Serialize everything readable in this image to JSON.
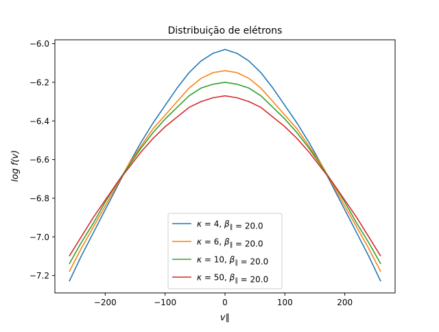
{
  "chart_data": {
    "type": "line",
    "title": "Distribuição de elétrons",
    "xlabel": "v∥",
    "ylabel": "log f(v)",
    "xlim": [
      -284,
      284
    ],
    "ylim": [
      -7.29,
      -5.98
    ],
    "x_ticks": [
      -200,
      -100,
      0,
      100,
      200
    ],
    "x_tick_labels": [
      "−200",
      "−100",
      "0",
      "100",
      "200"
    ],
    "y_ticks": [
      -6.0,
      -6.2,
      -6.4,
      -6.6,
      -6.8,
      -7.0,
      -7.2
    ],
    "y_tick_labels": [
      "−6.0",
      "−6.2",
      "−6.4",
      "−6.6",
      "−6.8",
      "−7.0",
      "−7.2"
    ],
    "grid": false,
    "legend_position": "lower center",
    "x": [
      -260,
      -240,
      -220,
      -200,
      -180,
      -160,
      -140,
      -120,
      -100,
      -80,
      -60,
      -40,
      -20,
      0,
      20,
      40,
      60,
      80,
      100,
      120,
      140,
      160,
      180,
      200,
      220,
      240,
      260
    ],
    "series": [
      {
        "name": "κ = 4, β∥ = 20.0",
        "legend": {
          "kappa": "4",
          "beta": "20.0"
        },
        "color": "#1f77b4",
        "values": [
          -7.23,
          -7.1,
          -6.98,
          -6.86,
          -6.74,
          -6.62,
          -6.51,
          -6.41,
          -6.32,
          -6.23,
          -6.15,
          -6.09,
          -6.05,
          -6.03,
          -6.05,
          -6.09,
          -6.15,
          -6.23,
          -6.32,
          -6.41,
          -6.51,
          -6.62,
          -6.74,
          -6.86,
          -6.98,
          -7.1,
          -7.23
        ]
      },
      {
        "name": "κ = 6, β∥ = 20.0",
        "legend": {
          "kappa": "6",
          "beta": "20.0"
        },
        "color": "#ff7f0e",
        "values": [
          -7.18,
          -7.06,
          -6.95,
          -6.84,
          -6.73,
          -6.62,
          -6.53,
          -6.44,
          -6.37,
          -6.3,
          -6.23,
          -6.18,
          -6.15,
          -6.14,
          -6.15,
          -6.18,
          -6.23,
          -6.3,
          -6.37,
          -6.44,
          -6.53,
          -6.62,
          -6.73,
          -6.84,
          -6.95,
          -7.06,
          -7.18
        ]
      },
      {
        "name": "κ = 10, β∥ = 20.0",
        "legend": {
          "kappa": "10",
          "beta": "20.0"
        },
        "color": "#2ca02c",
        "values": [
          -7.14,
          -7.03,
          -6.93,
          -6.82,
          -6.72,
          -6.63,
          -6.54,
          -6.46,
          -6.39,
          -6.33,
          -6.27,
          -6.23,
          -6.21,
          -6.2,
          -6.21,
          -6.23,
          -6.27,
          -6.33,
          -6.39,
          -6.46,
          -6.54,
          -6.63,
          -6.72,
          -6.82,
          -6.93,
          -7.03,
          -7.14
        ]
      },
      {
        "name": "κ = 50, β∥ = 20.0",
        "legend": {
          "kappa": "50",
          "beta": "20.0"
        },
        "color": "#d62728",
        "values": [
          -7.1,
          -7.0,
          -6.9,
          -6.81,
          -6.72,
          -6.64,
          -6.56,
          -6.49,
          -6.43,
          -6.38,
          -6.33,
          -6.3,
          -6.28,
          -6.27,
          -6.28,
          -6.3,
          -6.33,
          -6.38,
          -6.43,
          -6.49,
          -6.56,
          -6.64,
          -6.72,
          -6.81,
          -6.9,
          -7.0,
          -7.1
        ]
      }
    ]
  }
}
